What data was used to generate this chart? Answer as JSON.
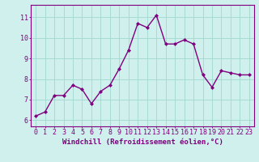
{
  "x": [
    0,
    1,
    2,
    3,
    4,
    5,
    6,
    7,
    8,
    9,
    10,
    11,
    12,
    13,
    14,
    15,
    16,
    17,
    18,
    19,
    20,
    21,
    22,
    23
  ],
  "y": [
    6.2,
    6.4,
    7.2,
    7.2,
    7.7,
    7.5,
    6.8,
    7.4,
    7.7,
    8.5,
    9.4,
    10.7,
    10.5,
    11.1,
    9.7,
    9.7,
    9.9,
    9.7,
    8.2,
    7.6,
    8.4,
    8.3,
    8.2,
    8.2
  ],
  "line_color": "#800080",
  "marker": "D",
  "marker_size": 2,
  "line_width": 1.0,
  "background_color": "#cff0ec",
  "grid_color": "#a0d8d0",
  "xlabel": "Windchill (Refroidissement éolien,°C)",
  "xlabel_fontsize": 6.5,
  "yticks": [
    6,
    7,
    8,
    9,
    10,
    11
  ],
  "ylim": [
    5.7,
    11.6
  ],
  "xlim": [
    -0.5,
    23.5
  ],
  "tick_color": "#800080",
  "tick_fontsize": 6,
  "axis_color": "#800080"
}
